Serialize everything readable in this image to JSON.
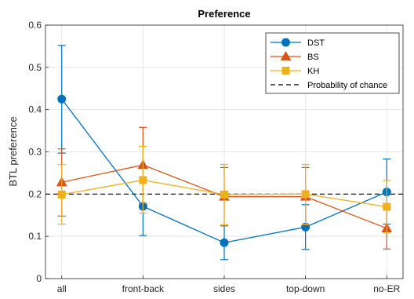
{
  "chart_data": {
    "type": "line",
    "title": "Preference",
    "xlabel": "",
    "ylabel": "BTL preference",
    "categories": [
      "all",
      "front-back",
      "sides",
      "top-down",
      "no-ER"
    ],
    "ylim": [
      0,
      0.6
    ],
    "yticks": [
      "0",
      "0.1",
      "0.2",
      "0.3",
      "0.4",
      "0.5",
      "0.6"
    ],
    "yticks_values": [
      0,
      0.1,
      0.2,
      0.3,
      0.4,
      0.5,
      0.6
    ],
    "grid": true,
    "legend_position": "top-right",
    "series": [
      {
        "name": "DST",
        "color": "#0072BD",
        "marker": "circle",
        "values": [
          0.425,
          0.171,
          0.085,
          0.122,
          0.205
        ],
        "err_low": [
          0.297,
          0.102,
          0.045,
          0.069,
          0.129
        ],
        "err_high": [
          0.552,
          0.241,
          0.125,
          0.175,
          0.283
        ]
      },
      {
        "name": "BS",
        "color": "#D95319",
        "marker": "triangle",
        "values": [
          0.228,
          0.269,
          0.194,
          0.194,
          0.119
        ],
        "err_low": [
          0.148,
          0.178,
          0.125,
          0.127,
          0.07
        ],
        "err_high": [
          0.307,
          0.358,
          0.263,
          0.263,
          0.169
        ]
      },
      {
        "name": "KH",
        "color": "#EDB120",
        "marker": "square",
        "values": [
          0.199,
          0.233,
          0.199,
          0.2,
          0.17
        ],
        "err_low": [
          0.129,
          0.155,
          0.127,
          0.128,
          0.108
        ],
        "err_high": [
          0.27,
          0.313,
          0.27,
          0.27,
          0.232
        ]
      }
    ],
    "reference_line": {
      "name": "Probability of chance",
      "value": 0.2,
      "style": "dashed",
      "color": "#000000"
    }
  }
}
